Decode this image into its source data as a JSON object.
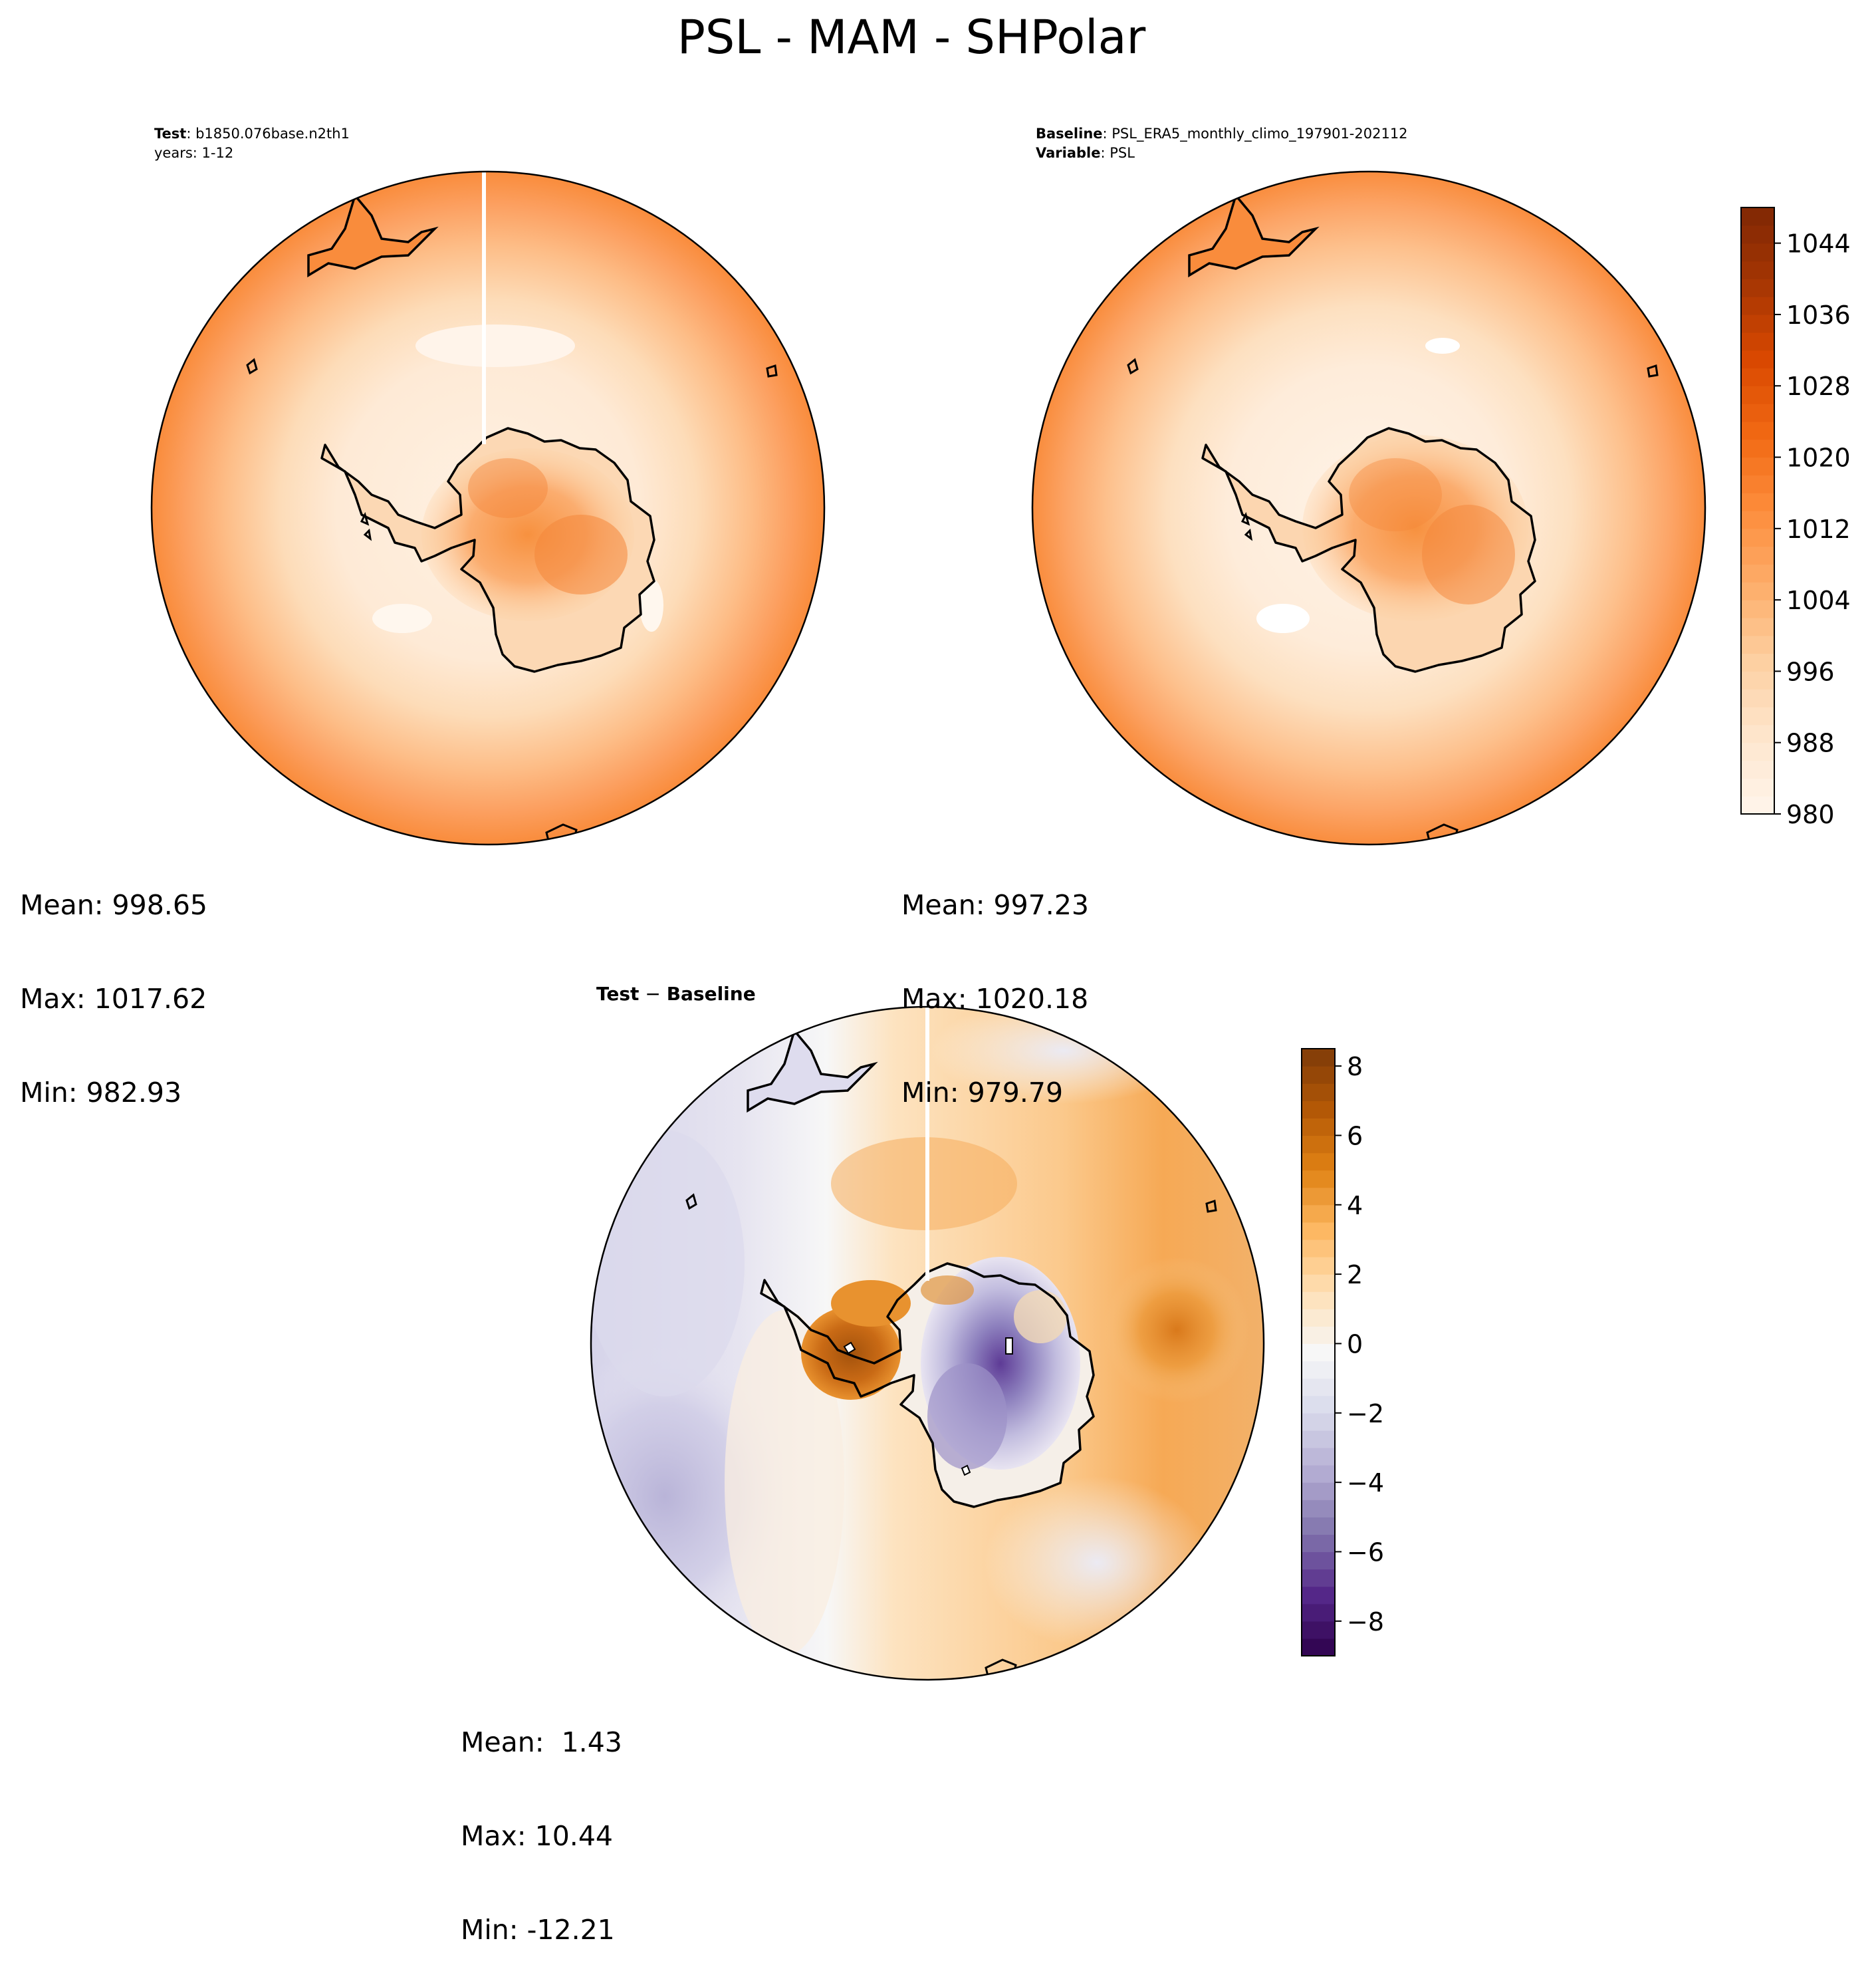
{
  "figure": {
    "title": "PSL - MAM - SHPolar"
  },
  "panels": {
    "test": {
      "label_bold": "Test",
      "label_rest": ": b1850.076base.n2th1",
      "line2": "years: 1-12",
      "stats": {
        "mean": "Mean: 998.65",
        "max": "Max: 1017.62",
        "min": "Min: 982.93"
      }
    },
    "baseline": {
      "label_bold": "Baseline",
      "label_rest": ": PSL_ERA5_monthly_climo_197901-202112",
      "line2_bold": "Variable",
      "line2_rest": ": PSL",
      "stats": {
        "mean": "Mean: 997.23",
        "max": "Max: 1020.18",
        "min": "Min: 979.79"
      }
    },
    "diff": {
      "title_a": "Test",
      "title_sep": " − ",
      "title_b": "Baseline",
      "stats": {
        "mean": "Mean:  1.43",
        "max": "Max: 10.44",
        "min": "Min: -12.21"
      }
    }
  },
  "colors": {
    "psl_scale": [
      "#fff5eb",
      "#fee6ce",
      "#fdd0a2",
      "#fdae6b",
      "#fd8d3c",
      "#f16913",
      "#d94801",
      "#a63603",
      "#7f2704"
    ],
    "diff_scale": [
      "#2d004b",
      "#542788",
      "#8073ac",
      "#b2abd2",
      "#d8daeb",
      "#f7f7f7",
      "#fee0b6",
      "#fdb863",
      "#e08214",
      "#b35806",
      "#7f3b08"
    ],
    "coastline": "#000000"
  },
  "chart_data": [
    {
      "type": "heatmap",
      "name": "Test",
      "projection": "south-polar-stereographic",
      "variable": "PSL",
      "mean": 998.65,
      "max": 1017.62,
      "min": 982.93,
      "colorbar": "shared-with-baseline"
    },
    {
      "type": "heatmap",
      "name": "Baseline",
      "projection": "south-polar-stereographic",
      "variable": "PSL",
      "mean": 997.23,
      "max": 1020.18,
      "min": 979.79,
      "colorbar": {
        "range": [
          980,
          1048
        ],
        "ticks": [
          980,
          988,
          996,
          1004,
          1012,
          1020,
          1028,
          1036,
          1044
        ],
        "tick_labels": [
          "980",
          "988",
          "996",
          "1004",
          "1012",
          "1020",
          "1028",
          "1036",
          "1044"
        ],
        "levels": 34
      }
    },
    {
      "type": "heatmap",
      "name": "Test − Baseline",
      "projection": "south-polar-stereographic",
      "variable": "PSL difference",
      "mean": 1.43,
      "max": 10.44,
      "min": -12.21,
      "colorbar": {
        "range": [
          -9,
          8.5
        ],
        "ticks": [
          -8,
          -6,
          -4,
          -2,
          0,
          2,
          4,
          6,
          8
        ],
        "tick_labels": [
          "−8",
          "−6",
          "−4",
          "−2",
          "0",
          "2",
          "4",
          "6",
          "8"
        ],
        "levels": 35
      }
    }
  ]
}
